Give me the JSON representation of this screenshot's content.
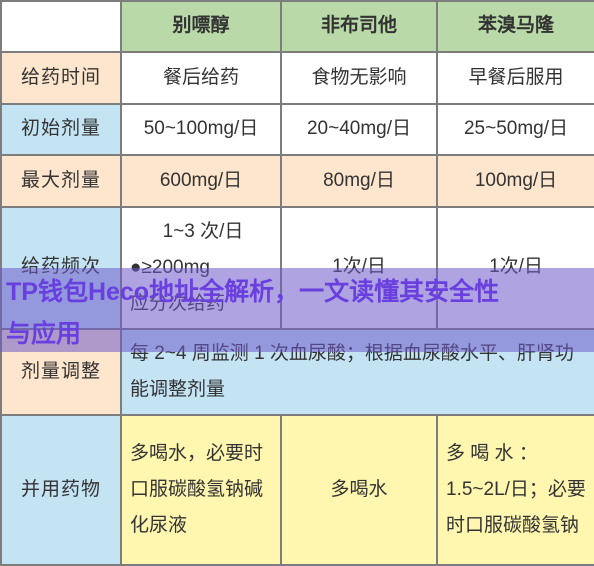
{
  "border_color": "#7d7d7d",
  "header": {
    "bg": "#b9d9a8",
    "empty_bg": "#ffffff",
    "cols": [
      "别嘌醇",
      "非布司他",
      "苯溴马隆"
    ]
  },
  "rows": [
    {
      "label": "给药时间",
      "label_bg": "#fde6cd",
      "cell_bg": "#ffffff",
      "cells": [
        "餐后给药",
        "食物无影响",
        "早餐后服用"
      ]
    },
    {
      "label": "初始剂量",
      "label_bg": "#c4e4f4",
      "cell_bg": "#ffffff",
      "cells": [
        "50~100mg/日",
        "20~40mg/日",
        "25~50mg/日"
      ]
    },
    {
      "label": "最大剂量",
      "label_bg": "#fde6cd",
      "cell_bg": "#fde6cd",
      "cells": [
        "600mg/日",
        "80mg/日",
        "100mg/日"
      ]
    },
    {
      "label": "给药频次",
      "label_bg": "#c4e4f4",
      "cell_bg": "#ffffff",
      "cells_special": {
        "col1_lines": [
          "1~3 次/日",
          "●≥200mg",
          "应分次给药"
        ],
        "col2": "1次/日",
        "col3": "1次/日"
      }
    },
    {
      "label": "剂量调整",
      "label_bg": "#fde6cd",
      "cell_bg": "#c4e4f4",
      "merged": "每 2~4 周监测 1 次血尿酸；根据血尿酸水平、肝肾功能调整剂量"
    },
    {
      "label": "并用药物",
      "label_bg": "#c4e4f4",
      "cell_bg": "#fff7b0",
      "cells": [
        "多喝水，必要时口服碳酸氢钠碱化尿液",
        "多喝水",
        "多 喝 水 ：1.5~2L/日；必要时口服碳酸氢钠"
      ]
    }
  ],
  "col_widths": [
    "120px",
    "160px",
    "156px",
    "158px"
  ],
  "overlay": {
    "bg": "rgba(110, 90, 200, 0.55)",
    "text_color": "#6a3fe0",
    "line1": "TP钱包Heco地址全解析，一文读懂其安全性",
    "line2": "与应用"
  }
}
